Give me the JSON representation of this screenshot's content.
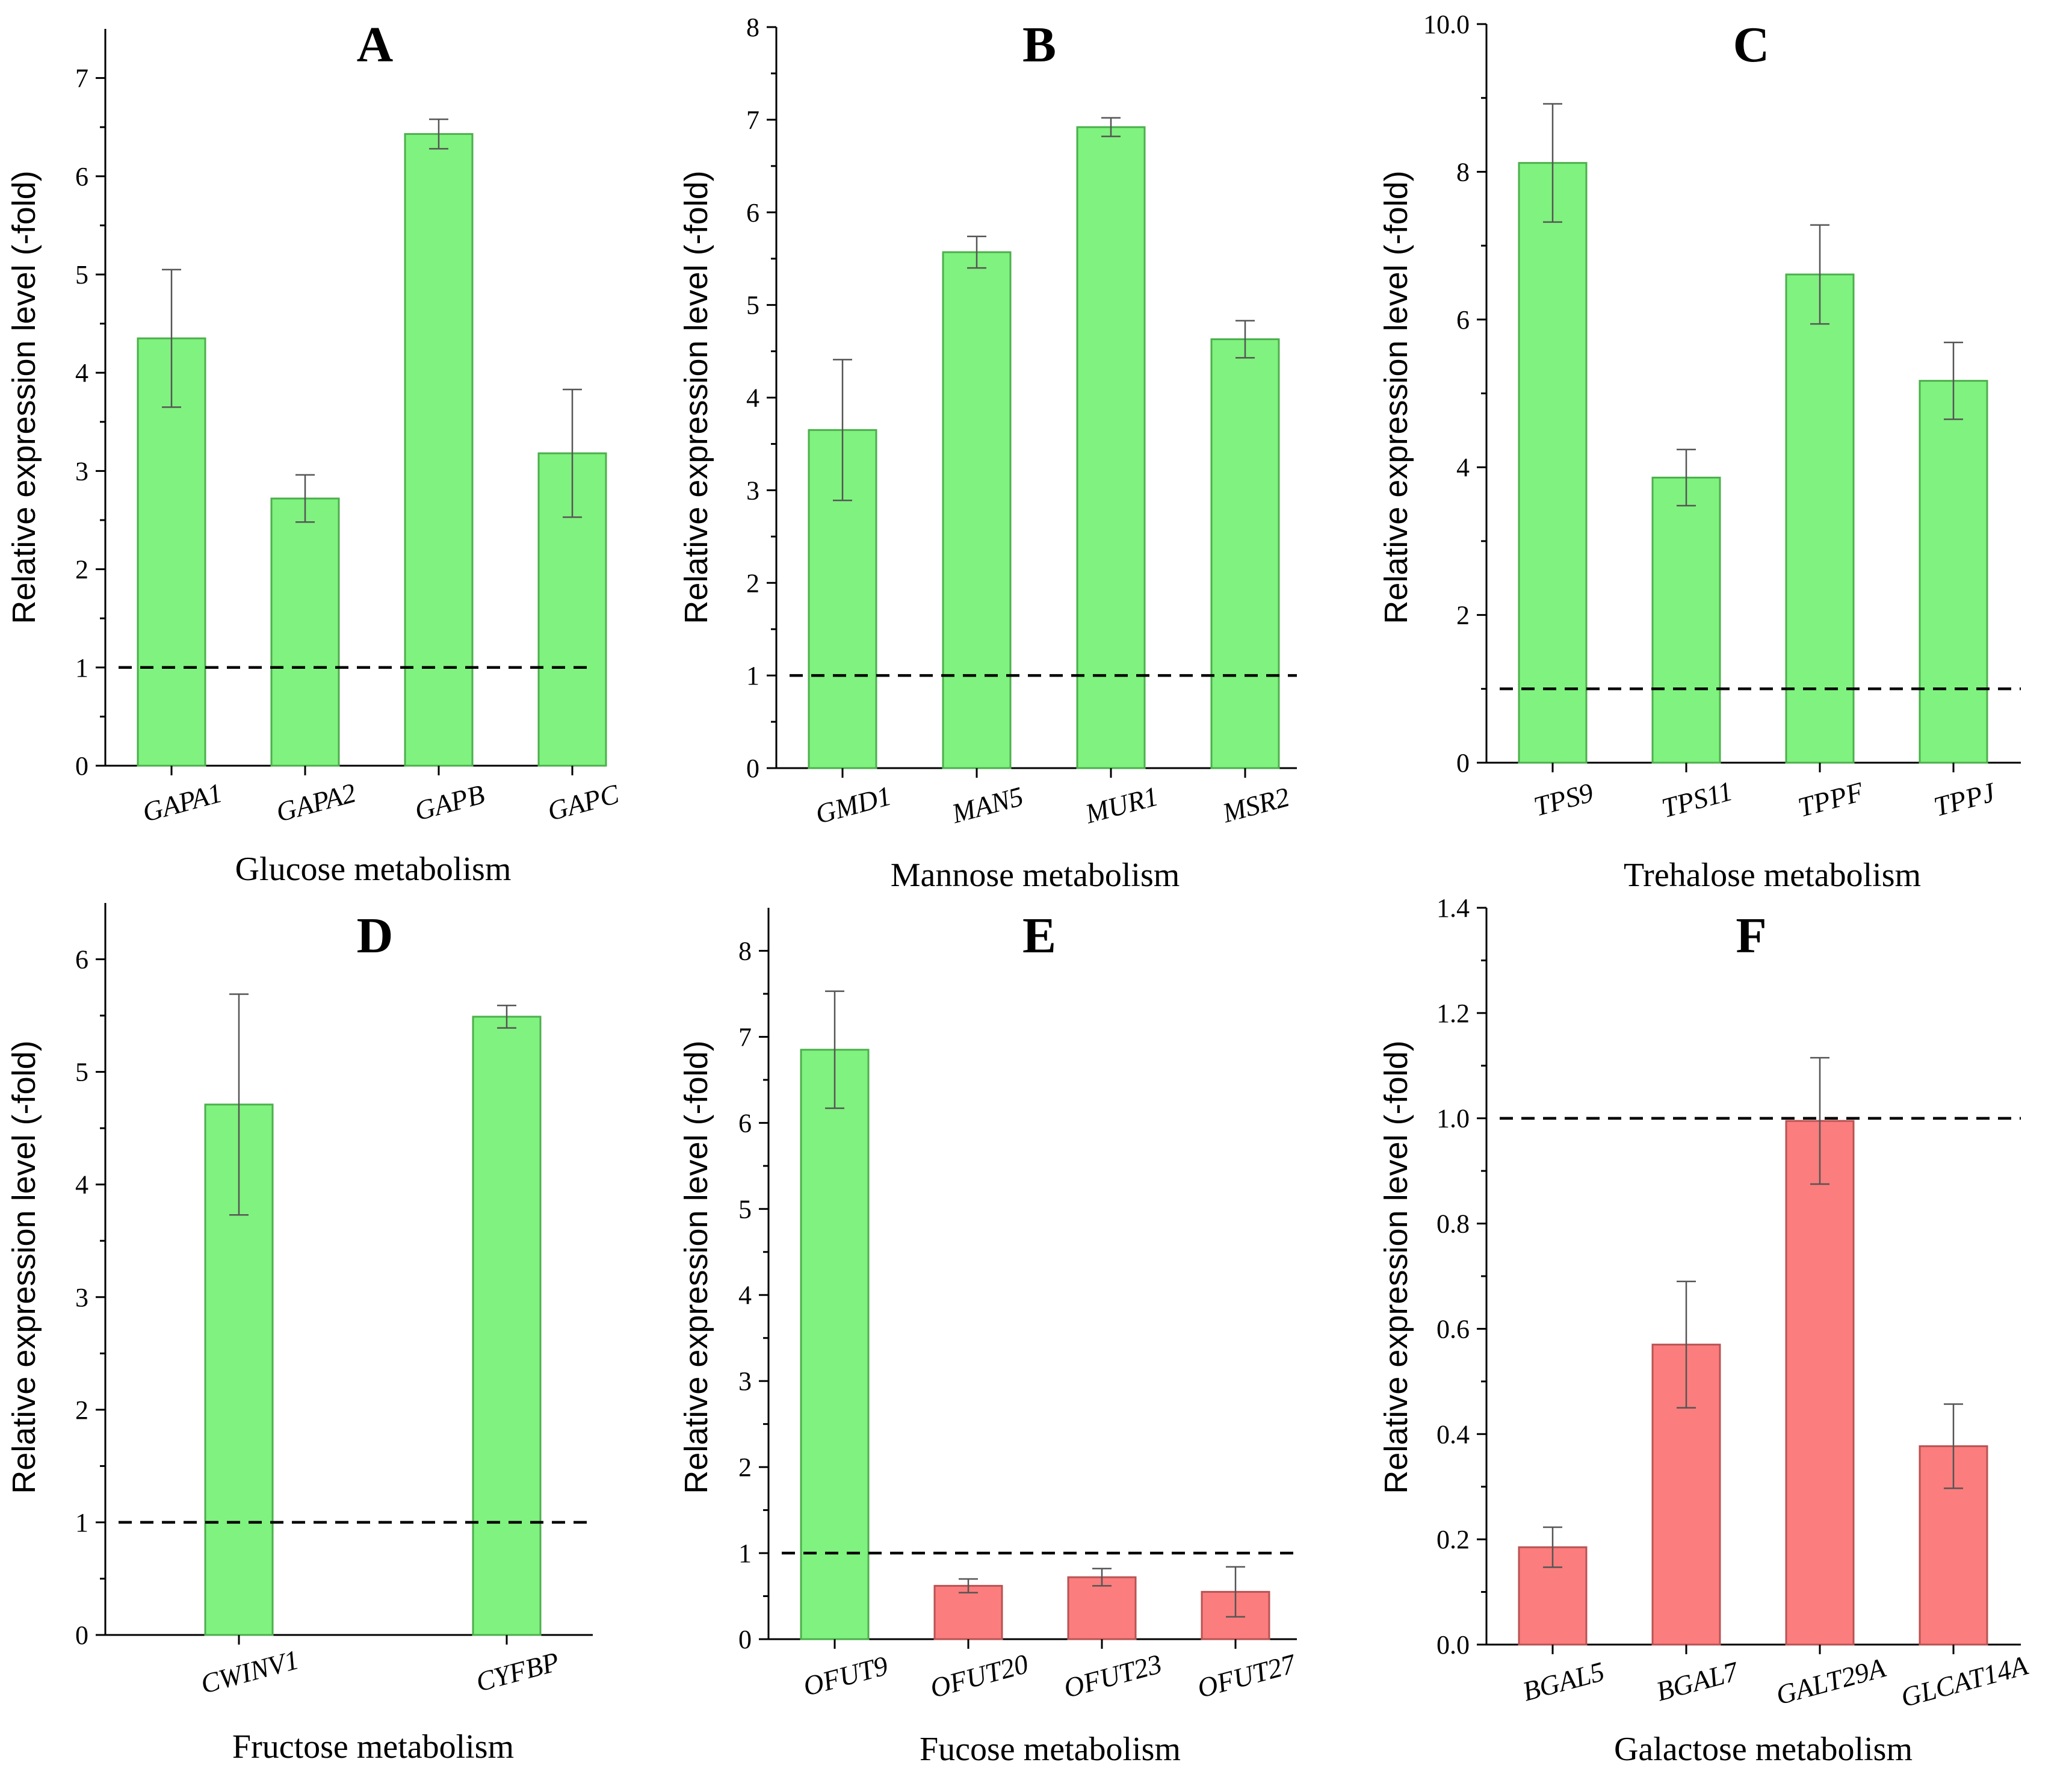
{
  "colors": {
    "up": "#80f27f",
    "up_stroke": "#4caf4c",
    "down": "#fb7d7d",
    "down_stroke": "#b85353"
  },
  "chart_data": [
    {
      "type": "bar",
      "panel": "A",
      "title": "A",
      "xlabel": "Glucose metabolism",
      "ylabel": "Relative expression level (-fold)",
      "ylim": [
        0,
        7.5
      ],
      "yticks": [
        0,
        1,
        2,
        3,
        4,
        5,
        6,
        7
      ],
      "ytick_labels": [
        "0",
        "1",
        "2",
        "3",
        "4",
        "5",
        "6",
        "7"
      ],
      "categories": [
        "GAPA1",
        "GAPA2",
        "GAPB",
        "GAPC"
      ],
      "values": [
        4.35,
        2.72,
        6.43,
        3.18
      ],
      "errors": [
        0.7,
        0.24,
        0.15,
        0.65
      ],
      "reference_line": 1
    },
    {
      "type": "bar",
      "panel": "B",
      "title": "B",
      "xlabel": "Mannose metabolism",
      "ylabel": "Relative expression level (-fold)",
      "ylim": [
        0,
        8
      ],
      "yticks": [
        0,
        1,
        2,
        3,
        4,
        5,
        6,
        7,
        8
      ],
      "ytick_labels": [
        "0",
        "1",
        "2",
        "3",
        "4",
        "5",
        "6",
        "7",
        "8"
      ],
      "categories": [
        "GMD1",
        "MAN5",
        "MUR1",
        "MSR2"
      ],
      "values": [
        3.65,
        5.57,
        6.92,
        4.63
      ],
      "errors": [
        0.76,
        0.17,
        0.1,
        0.2
      ],
      "reference_line": 1
    },
    {
      "type": "bar",
      "panel": "C",
      "title": "C",
      "xlabel": "Trehalose metabolism",
      "ylabel": "Relative expression level (-fold)",
      "ylim": [
        0,
        10
      ],
      "yticks": [
        0,
        2,
        4,
        6,
        8,
        10
      ],
      "ytick_labels": [
        "0",
        "2",
        "4",
        "6",
        "8",
        "10.0"
      ],
      "categories": [
        "TPS9",
        "TPS11",
        "TPPF",
        "TPPJ"
      ],
      "values": [
        8.12,
        3.86,
        6.61,
        5.17
      ],
      "errors": [
        0.8,
        0.38,
        0.67,
        0.52
      ],
      "reference_line": 1
    },
    {
      "type": "bar",
      "panel": "D",
      "title": "D",
      "xlabel": "Fructose metabolism",
      "ylabel": "Relative expression level (-fold)",
      "ylim": [
        0,
        6.5
      ],
      "yticks": [
        0,
        1,
        2,
        3,
        4,
        5,
        6
      ],
      "ytick_labels": [
        "0",
        "1",
        "2",
        "3",
        "4",
        "5",
        "6"
      ],
      "categories": [
        "CWINV1",
        "CYFBP"
      ],
      "values": [
        4.71,
        5.49
      ],
      "errors": [
        0.98,
        0.1
      ],
      "reference_line": 1
    },
    {
      "type": "bar",
      "panel": "E",
      "title": "E",
      "xlabel": "Fucose metabolism",
      "ylabel": "Relative expression level (-fold)",
      "ylim": [
        0,
        8.5
      ],
      "yticks": [
        0,
        1,
        2,
        3,
        4,
        5,
        6,
        7,
        8
      ],
      "ytick_labels": [
        "0",
        "1",
        "2",
        "3",
        "4",
        "5",
        "6",
        "7",
        "8"
      ],
      "categories": [
        "OFUT9",
        "OFUT20",
        "OFUT23",
        "OFUT27"
      ],
      "values": [
        6.85,
        0.62,
        0.72,
        0.55
      ],
      "errors": [
        0.68,
        0.08,
        0.1,
        0.29
      ],
      "reference_line": 1
    },
    {
      "type": "bar",
      "panel": "F",
      "title": "F",
      "xlabel": "Galactose metabolism",
      "ylabel": "Relative expression level (-fold)",
      "ylim": [
        0,
        1.4
      ],
      "yticks": [
        0,
        0.2,
        0.4,
        0.6,
        0.8,
        1.0,
        1.2,
        1.4
      ],
      "ytick_labels": [
        "0.0",
        "0.2",
        "0.4",
        "0.6",
        "0.8",
        "1.0",
        "1.2",
        "1.4"
      ],
      "categories": [
        "BGAL5",
        "BGAL7",
        "GALT29A",
        "GLCAT14A"
      ],
      "values": [
        0.185,
        0.57,
        0.995,
        0.377
      ],
      "errors": [
        0.038,
        0.12,
        0.12,
        0.08
      ],
      "reference_line": 1
    }
  ]
}
